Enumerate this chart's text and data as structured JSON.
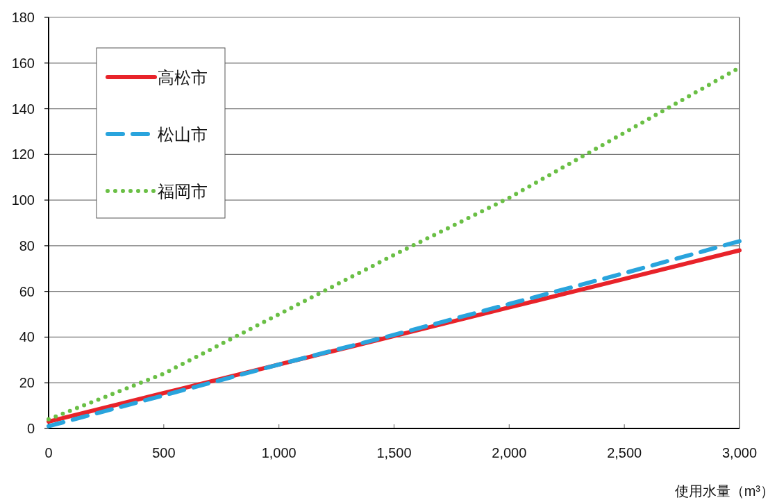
{
  "chart_data": {
    "type": "line",
    "xlabel": "使用水量（m³）",
    "x": [
      0,
      500,
      1000,
      1500,
      2000,
      2500,
      3000
    ],
    "series": [
      {
        "name": "高松市",
        "color": "#e8232a",
        "line_style": "solid",
        "values": [
          3,
          15.5,
          28,
          40.5,
          53,
          65.5,
          78
        ]
      },
      {
        "name": "松山市",
        "color": "#29a4dd",
        "line_style": "dashed",
        "values": [
          1,
          14.5,
          28,
          41,
          54.5,
          68,
          82
        ]
      },
      {
        "name": "福岡市",
        "color": "#6abf45",
        "line_style": "dotted",
        "values": [
          4,
          24,
          50,
          76,
          101,
          129.5,
          158
        ]
      }
    ],
    "xlim": [
      0,
      3000
    ],
    "xticks": [
      {
        "value": 0,
        "label": "0"
      },
      {
        "value": 500,
        "label": "500"
      },
      {
        "value": 1000,
        "label": "1,000"
      },
      {
        "value": 1500,
        "label": "1,500"
      },
      {
        "value": 2000,
        "label": "2,000"
      },
      {
        "value": 2500,
        "label": "2,500"
      },
      {
        "value": 3000,
        "label": "3,000"
      }
    ],
    "ylim": [
      0,
      180
    ],
    "yticks": [
      0,
      20,
      40,
      60,
      80,
      100,
      120,
      140,
      160,
      180
    ],
    "grid": "y",
    "legend": "top left"
  }
}
